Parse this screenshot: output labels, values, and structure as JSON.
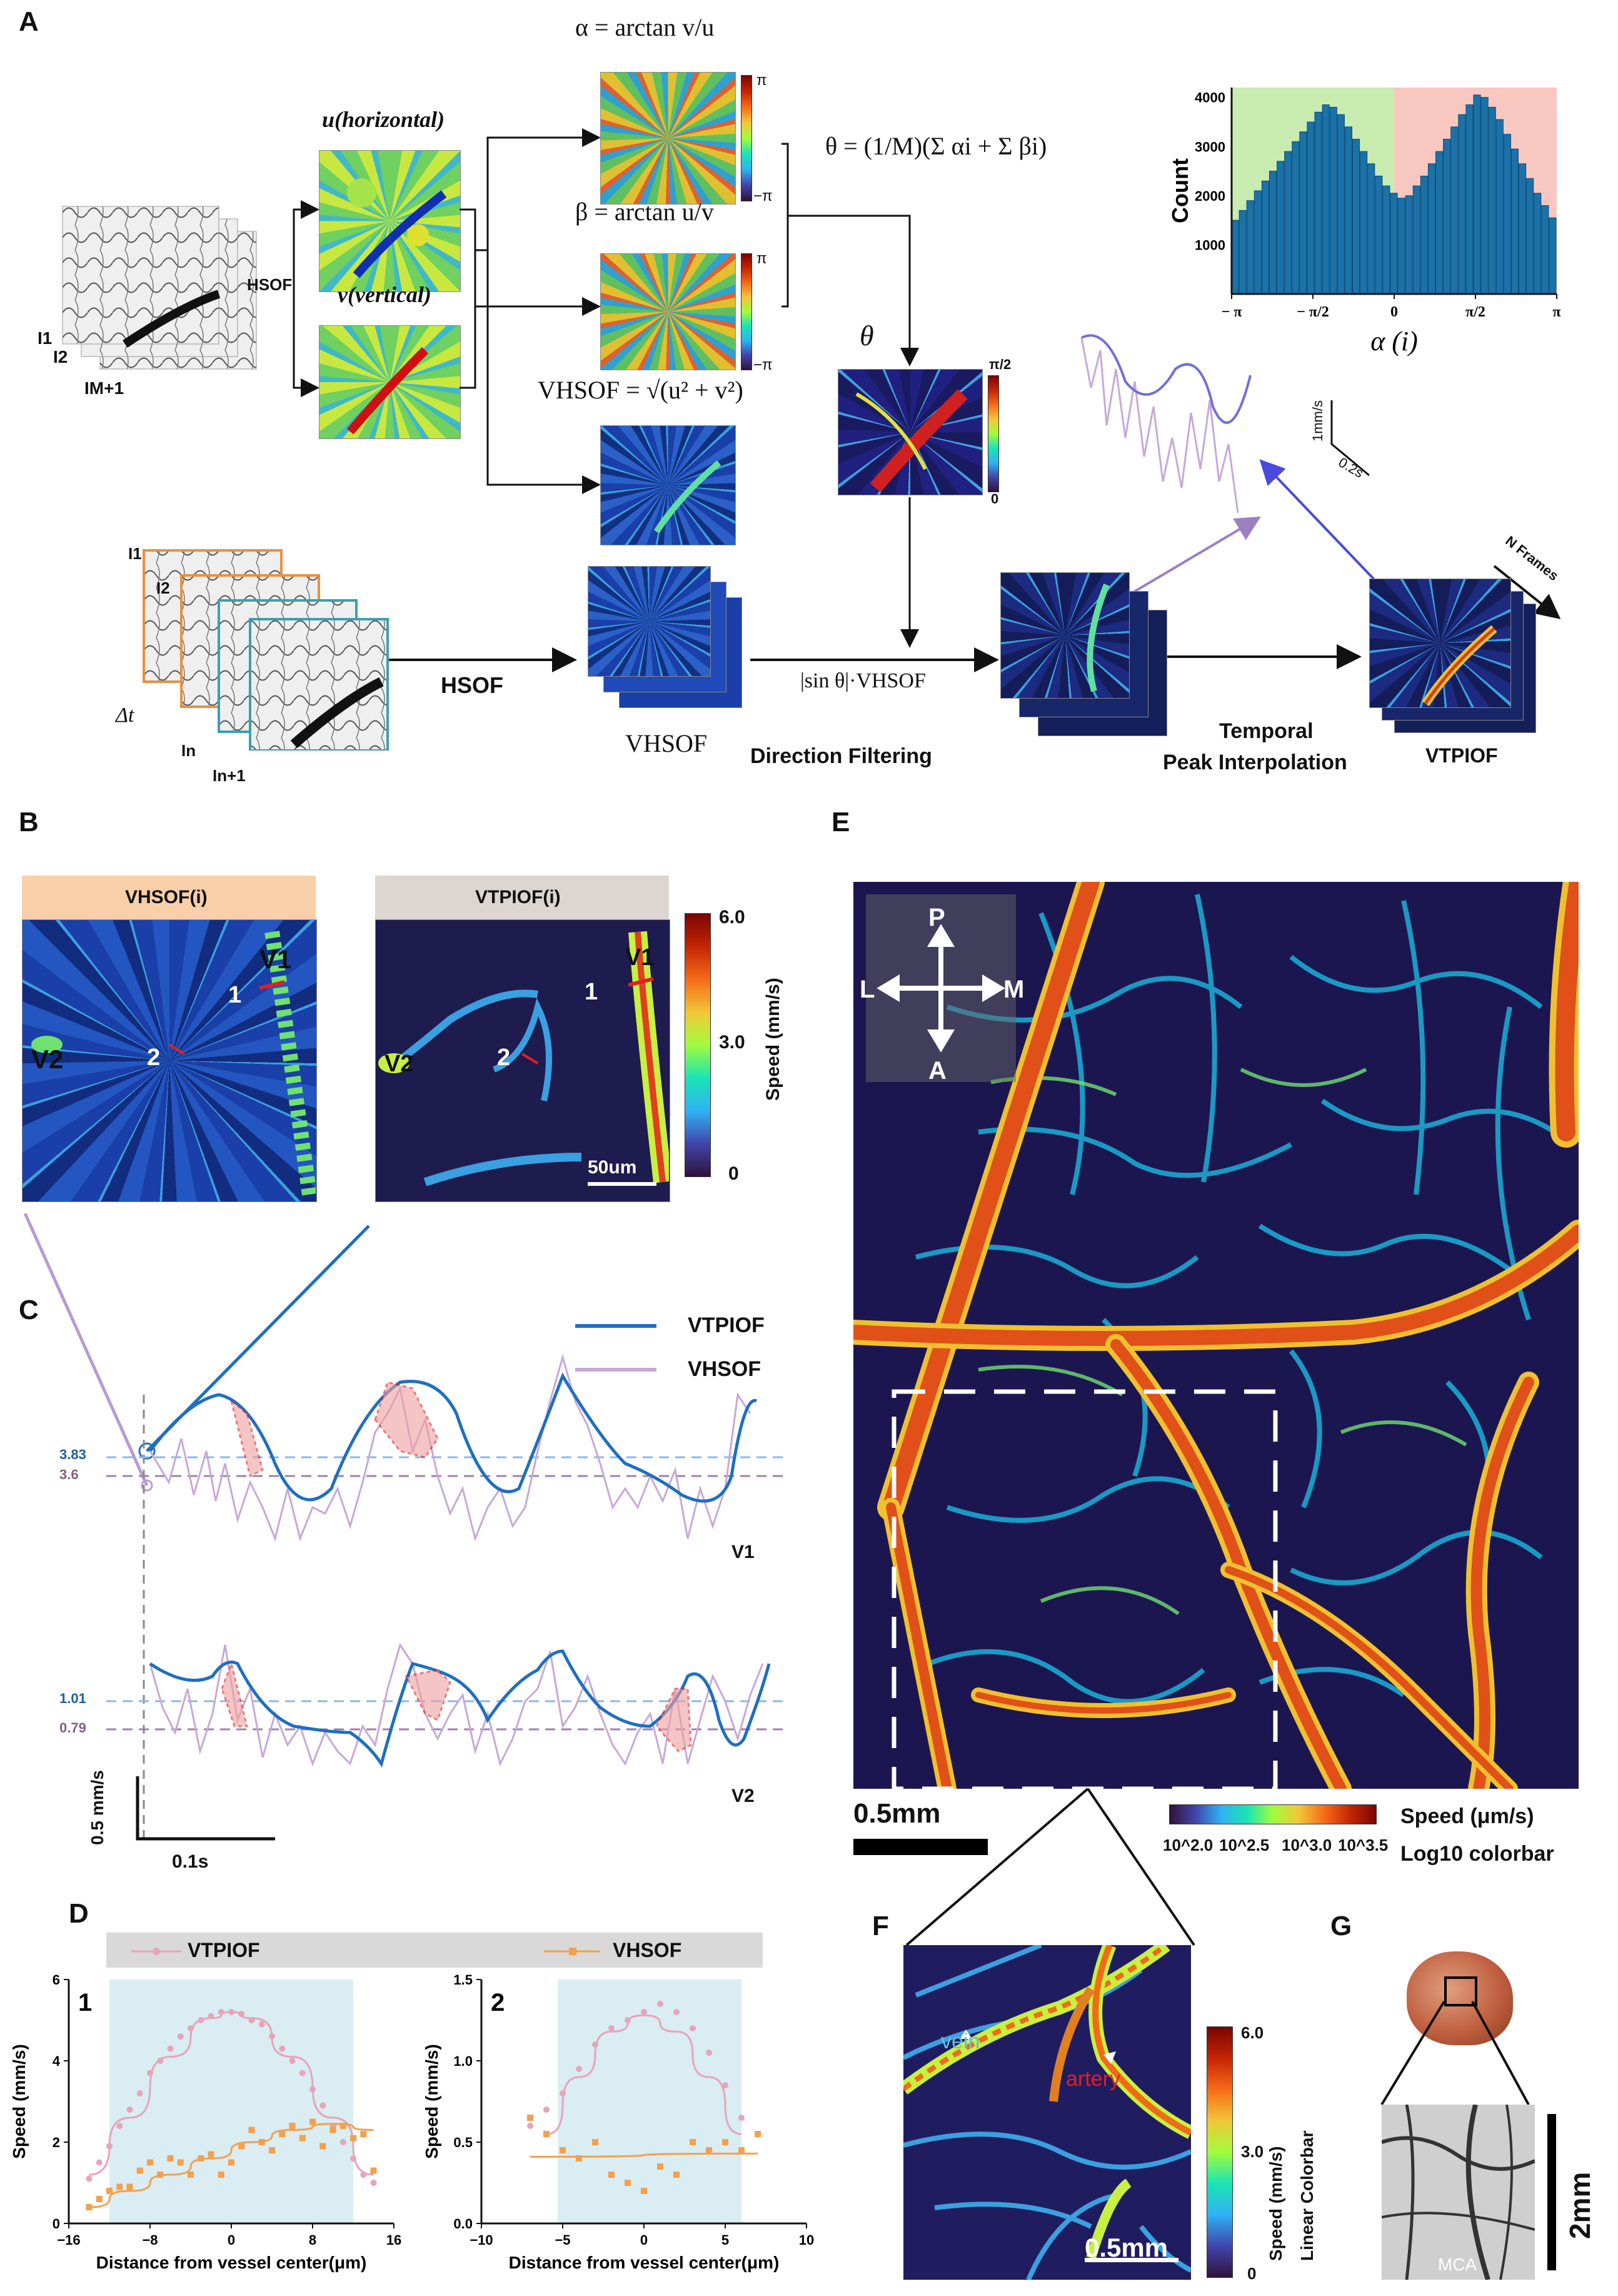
{
  "panels": {
    "a": "A",
    "b": "B",
    "c": "C",
    "d": "D",
    "e": "E",
    "f": "F",
    "g": "G"
  },
  "panel_a": {
    "frames_top": [
      "I",
      "1",
      "I",
      "2",
      "I",
      "M+1"
    ],
    "frame_labels_top": {
      "i1": "I1",
      "i2": "I2",
      "im1": "IM+1"
    },
    "hsof_small": "HSOF",
    "u_label": "u(horizontal)",
    "v_label": "v(vertical)",
    "alpha_eq": "α = arctan v/u",
    "beta_eq": "β = arctan u/v",
    "theta_eq": "θ = (1/M)(Σ αi + Σ βi)",
    "vhsof_eq": "VHSOF = √(u² + v²)",
    "theta_symbol": "θ",
    "pi": "π",
    "neg_pi": "−π",
    "half_pi": "π/2",
    "zero": "0",
    "frames_bottom": {
      "i1": "I1",
      "i2": "I2",
      "in": "In",
      "in1": "In+1",
      "dt": "Δt"
    },
    "hsof_big": "HSOF",
    "vhsof_stack": "VHSOF",
    "sin_theta": "|sin θ|·VHSOF",
    "direction_filtering": "Direction Filtering",
    "temporal_1": "Temporal",
    "temporal_2": "Peak Interpolation",
    "vtpiof": "VTPIOF",
    "n_frames": "N Frames",
    "scale_speed": "1mm/s",
    "scale_time": "0.2s"
  },
  "histogram": {
    "ylabel": "Count",
    "xlabel": "α (i)",
    "yticks": [
      "1000",
      "2000",
      "3000",
      "4000"
    ],
    "xticks": [
      "− π",
      "− π/2",
      "0",
      "π/2",
      "π"
    ],
    "values": [
      1500,
      1700,
      1900,
      2100,
      2300,
      2500,
      2700,
      2900,
      3100,
      3300,
      3500,
      3700,
      3850,
      3800,
      3650,
      3400,
      3150,
      2900,
      2650,
      2400,
      2200,
      2050,
      1950,
      2000,
      2200,
      2400,
      2650,
      2900,
      3150,
      3400,
      3650,
      3850,
      4050,
      4000,
      3800,
      3550,
      3250,
      2950,
      2650,
      2350,
      2050,
      1800,
      1550
    ],
    "ylim": [
      0,
      4200
    ]
  },
  "panel_b": {
    "left_title": "VHSOF(i)",
    "right_title": "VTPIOF(i)",
    "v1": "V1",
    "v2": "V2",
    "n1": "1",
    "n2": "2",
    "scalebar": "50um",
    "cb_max": "6.0",
    "cb_mid": "3.0",
    "cb_min": "0",
    "cb_label": "Speed (mm/s)"
  },
  "panel_c": {
    "legend_tpiof": "VTPIOF",
    "legend_hsof": "VHSOF",
    "v1_tpiof_level": "3.83",
    "v1_hsof_level": "3.6",
    "v2_tpiof_level": "1.01",
    "v2_hsof_level": "0.79",
    "v1": "V1",
    "v2": "V2",
    "scale_speed": "0.5 mm/s",
    "scale_time": "0.1s"
  },
  "chart_data": [
    {
      "type": "scatter",
      "panel": "D1",
      "legend": [
        "VTPIOF"
      ],
      "xlabel": "Distance from vessel center(μm)",
      "ylabel": "Speed (mm/s)",
      "label": "1",
      "xlim": [
        -16,
        16
      ],
      "ylim": [
        0,
        6
      ],
      "xticks": [
        "−16",
        "−8",
        "0",
        "8",
        "16"
      ],
      "yticks": [
        "0",
        "2",
        "4",
        "6"
      ],
      "series": [
        {
          "name": "VTPIOF",
          "color": "#e8a4b8",
          "x": [
            -14,
            -13,
            -12,
            -11,
            -10,
            -9,
            -8,
            -7,
            -6,
            -5,
            -4,
            -3,
            -2,
            -1,
            0,
            1,
            2,
            3,
            4,
            5,
            6,
            7,
            8,
            9,
            10,
            11,
            12,
            13,
            14
          ],
          "y": [
            1.1,
            1.5,
            1.9,
            2.4,
            2.8,
            3.2,
            3.7,
            4.0,
            4.3,
            4.6,
            4.8,
            5.0,
            5.1,
            5.2,
            5.2,
            5.15,
            5.0,
            4.9,
            4.6,
            4.3,
            4.0,
            3.7,
            3.3,
            2.9,
            2.4,
            2.0,
            1.6,
            1.2,
            1.0
          ],
          "fit_x": [
            -14,
            -10,
            -6,
            -2,
            0,
            2,
            6,
            10,
            14
          ],
          "fit_y": [
            1.2,
            2.6,
            4.1,
            5.05,
            5.2,
            5.05,
            4.1,
            2.6,
            1.2
          ]
        },
        {
          "name": "VHSOF",
          "color": "#f5a04a",
          "x": [
            -14,
            -13,
            -12,
            -11,
            -10,
            -9,
            -8,
            -7,
            -6,
            -5,
            -4,
            -3,
            -2,
            -1,
            0,
            1,
            2,
            3,
            4,
            5,
            6,
            7,
            8,
            9,
            10,
            11,
            12,
            13,
            14
          ],
          "y": [
            0.4,
            0.6,
            0.8,
            0.9,
            0.9,
            1.3,
            1.5,
            1.2,
            1.6,
            1.5,
            1.2,
            1.6,
            1.7,
            1.2,
            1.5,
            1.9,
            2.3,
            2.0,
            1.8,
            2.2,
            2.4,
            2.1,
            2.5,
            1.9,
            2.3,
            2.4,
            2.1,
            2.2,
            1.3
          ],
          "fit_x": [
            -14,
            -10,
            -6,
            -2,
            2,
            6,
            10,
            14
          ],
          "fit_y": [
            0.4,
            0.8,
            1.2,
            1.6,
            2.0,
            2.3,
            2.45,
            2.3
          ]
        }
      ]
    },
    {
      "type": "scatter",
      "panel": "D2",
      "legend": [
        "VHSOF"
      ],
      "xlabel": "Distance from vessel center(μm)",
      "ylabel": "Speed (mm/s)",
      "label": "2",
      "xlim": [
        -10,
        10
      ],
      "ylim": [
        0,
        1.5
      ],
      "xticks": [
        "−10",
        "−5",
        "0",
        "5",
        "10"
      ],
      "yticks": [
        "0.0",
        "0.5",
        "1.0",
        "1.5"
      ],
      "series": [
        {
          "name": "VTPIOF",
          "color": "#e8a4b8",
          "x": [
            -7,
            -6,
            -5,
            -4,
            -3,
            -2,
            -1,
            0,
            1,
            2,
            3,
            4,
            5,
            6,
            7
          ],
          "y": [
            0.6,
            0.7,
            0.8,
            0.95,
            1.1,
            1.2,
            1.25,
            1.3,
            1.35,
            1.3,
            1.2,
            1.05,
            0.85,
            0.65,
            0.55
          ],
          "fit_x": [
            -6,
            -4,
            -2,
            0,
            2,
            4,
            6
          ],
          "fit_y": [
            0.55,
            0.9,
            1.18,
            1.28,
            1.18,
            0.9,
            0.55
          ]
        },
        {
          "name": "VHSOF",
          "color": "#f5a04a",
          "x": [
            -7,
            -6,
            -5,
            -4,
            -3,
            -2,
            -1,
            0,
            1,
            2,
            3,
            4,
            5,
            6,
            7
          ],
          "y": [
            0.65,
            0.55,
            0.45,
            0.4,
            0.5,
            0.3,
            0.25,
            0.2,
            0.35,
            0.3,
            0.5,
            0.45,
            0.5,
            0.45,
            0.55
          ],
          "fit_x": [
            -7,
            7
          ],
          "fit_y": [
            0.41,
            0.43
          ]
        }
      ]
    }
  ],
  "panel_e": {
    "p": "P",
    "a": "A",
    "l": "L",
    "m": "M",
    "scalebar": "0.5mm",
    "cb_label": "Speed (μm/s)",
    "cb_ticks": [
      "10^2.0",
      "10^2.5",
      "10^3.0",
      "10^3.5"
    ],
    "cb_sub": "Log10  colorbar"
  },
  "panel_f": {
    "vein": "vein",
    "artery": "artery",
    "scalebar": "0.5mm",
    "cb_max": "6.0",
    "cb_mid": "3.0",
    "cb_min": "0",
    "cb_label": "Speed (mm/s)",
    "cb_sub": "Linear Colorbar"
  },
  "panel_g": {
    "mca": "MCA",
    "scalebar": "2mm"
  }
}
